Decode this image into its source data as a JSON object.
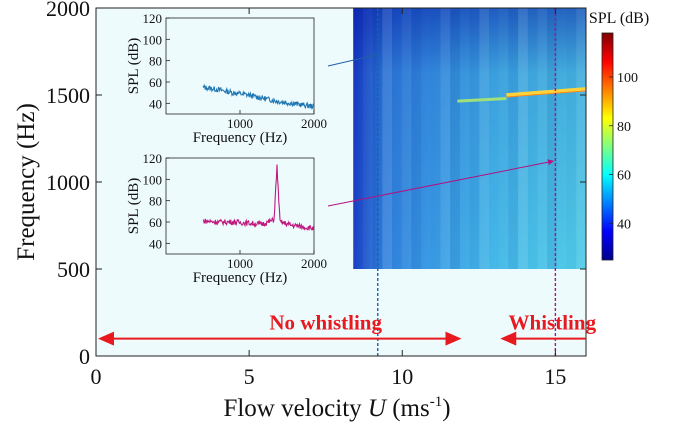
{
  "chart_data": {
    "type": "heatmap",
    "xlabel": "Flow velocity",
    "xlabel_symbol": "U",
    "xlabel_unit": "(ms",
    "xlabel_unit_sup": "-1",
    "xlabel_unit_close": ")",
    "ylabel": "Frequency (Hz)",
    "xlim": [
      0,
      16
    ],
    "ylim": [
      0,
      2000
    ],
    "xticks": [
      0,
      5,
      10,
      15
    ],
    "yticks": [
      0,
      500,
      1000,
      1500,
      2000
    ],
    "heatmap_extent": {
      "x": [
        8.4,
        16
      ],
      "y": [
        500,
        2000
      ]
    },
    "whistle_tone": {
      "x_start": 11.8,
      "x_end": 16,
      "freq_start": 1465,
      "freq_end": 1535,
      "onset": 13.4
    },
    "colorbar": {
      "title": "SPL (dB)",
      "range": [
        25,
        118
      ],
      "ticks": [
        40,
        60,
        80,
        100
      ],
      "colormap": "jet"
    },
    "marker_lines": [
      {
        "x": 9.2,
        "color": "#1f5fa8"
      },
      {
        "x": 15.0,
        "color": "#b0127f"
      }
    ],
    "annotations": [
      {
        "text": "No whistling",
        "color": "#e8191f"
      },
      {
        "text": "Whistling",
        "color": "#e8191f"
      }
    ],
    "regions": [
      {
        "label": "No whistling",
        "x_range": [
          0,
          12.0
        ],
        "y": 100
      },
      {
        "label": "Whistling",
        "x_range": [
          13.2,
          16
        ],
        "y": 100
      }
    ],
    "insets": [
      {
        "type": "line",
        "xlabel": "Frequency (Hz)",
        "ylabel": "SPL (dB)",
        "xlim": [
          0,
          2000
        ],
        "ylim": [
          30,
          120
        ],
        "xticks": [
          1000,
          2000
        ],
        "yticks": [
          40,
          60,
          80,
          100,
          120
        ],
        "color": "#1f77b4",
        "series": {
          "x": [
            500,
            700,
            900,
            1100,
            1300,
            1500,
            1700,
            1900,
            2000
          ],
          "y": [
            55,
            53,
            50,
            48,
            45,
            42,
            40,
            38,
            37
          ]
        },
        "points_to_velocity": 9.2
      },
      {
        "type": "line",
        "xlabel": "Frequency (Hz)",
        "ylabel": "SPL (dB)",
        "xlim": [
          0,
          2000
        ],
        "ylim": [
          30,
          120
        ],
        "xticks": [
          1000,
          2000
        ],
        "yticks": [
          40,
          60,
          80,
          100,
          120
        ],
        "color": "#c0187e",
        "series": {
          "x": [
            500,
            700,
            900,
            1100,
            1300,
            1460,
            1500,
            1540,
            1700,
            1900,
            2000
          ],
          "y": [
            61,
            60,
            60,
            59,
            58,
            62,
            112,
            60,
            57,
            55,
            54
          ]
        },
        "points_to_velocity": 15.0
      }
    ]
  }
}
